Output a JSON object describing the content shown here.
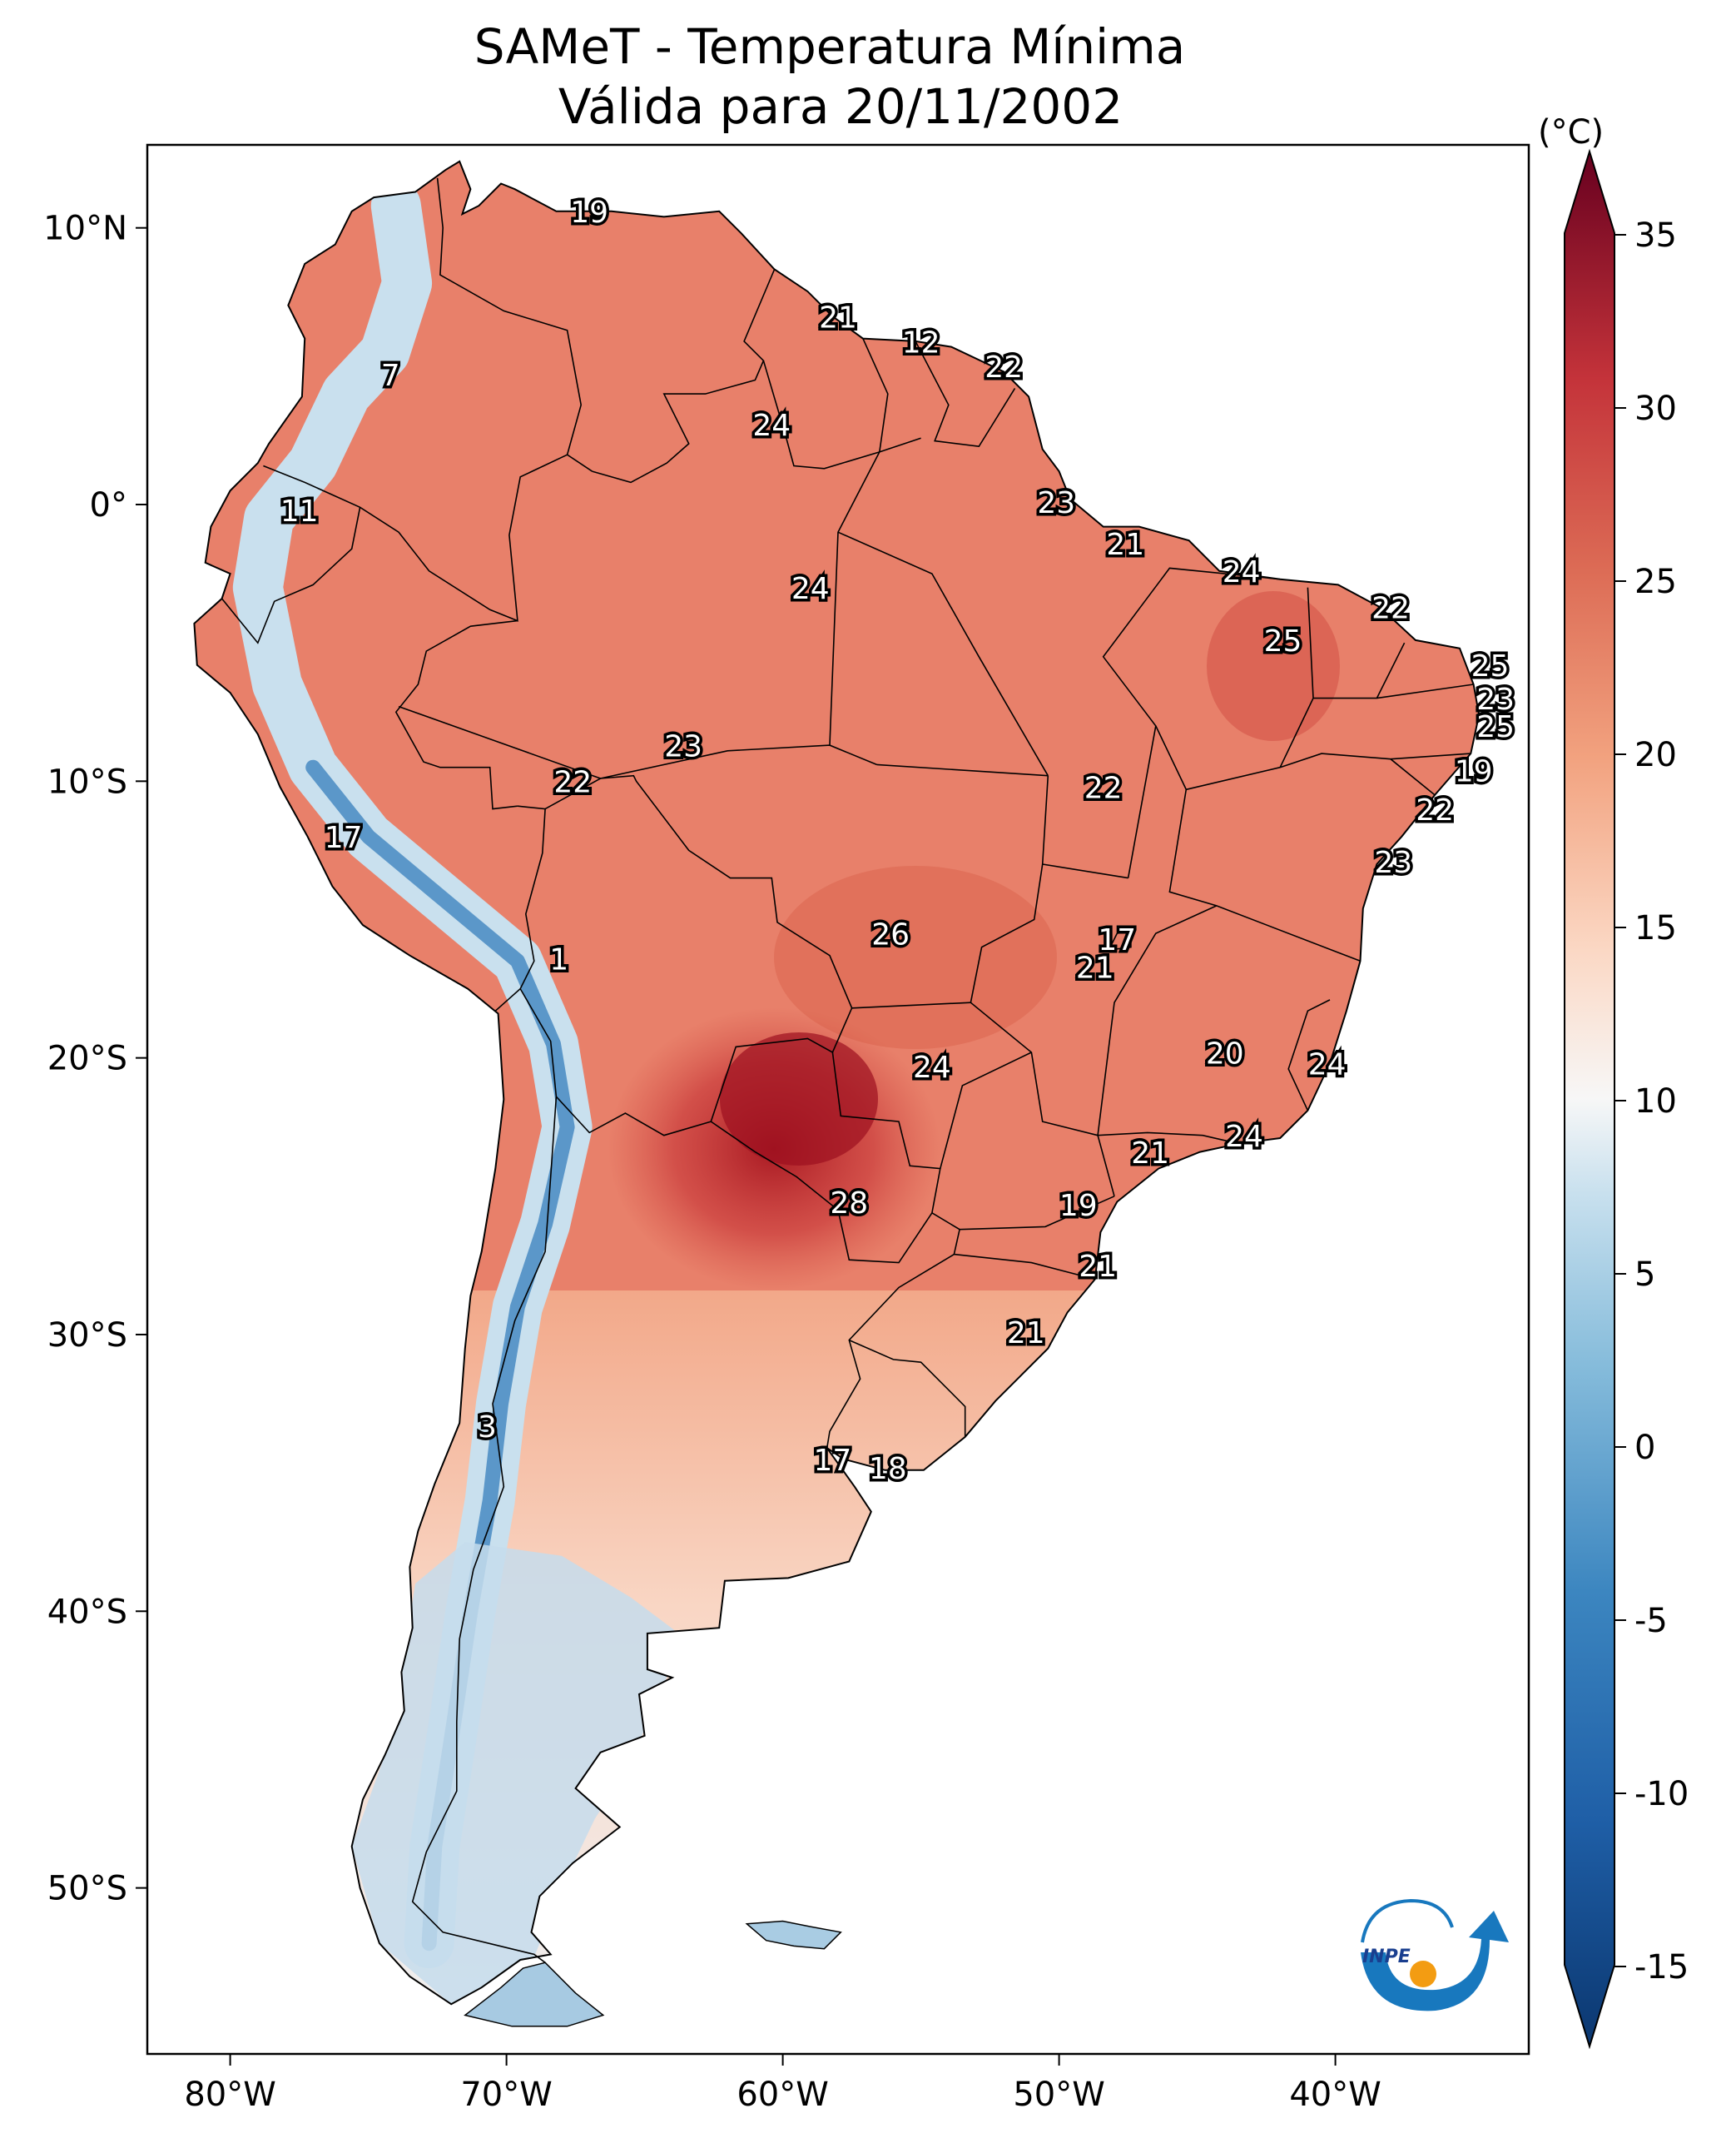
{
  "title": {
    "line1": "SAMeT - Temperatura Mínima",
    "line2": "Válida para 20/11/2002"
  },
  "map": {
    "lon_ticks": [
      "80°W",
      "70°W",
      "60°W",
      "50°W",
      "40°W"
    ],
    "lat_ticks": [
      "10°N",
      "0°",
      "10°S",
      "20°S",
      "30°S",
      "40°S",
      "50°S"
    ],
    "extent": {
      "lon_min": -83,
      "lon_max": -33,
      "lat_min": -56,
      "lat_max": 13
    }
  },
  "colorbar": {
    "unit": "(°C)",
    "ticks": [
      "35",
      "30",
      "25",
      "20",
      "15",
      "10",
      "5",
      "0",
      "-5",
      "-10",
      "-15"
    ],
    "range": [
      -15,
      35
    ],
    "colors": {
      "min": "#0b3770",
      "cold": "#3c86c0",
      "cool": "#b9d9ea",
      "neutral": "#f7f7f7",
      "mild": "#f9c4a8",
      "warm": "#e5806b",
      "hot": "#c4333a",
      "max": "#67001f"
    }
  },
  "stations": [
    {
      "value": "19",
      "lon": -67.0,
      "lat": 10.5
    },
    {
      "value": "21",
      "lon": -58.0,
      "lat": 6.7
    },
    {
      "value": "12",
      "lon": -55.0,
      "lat": 5.8
    },
    {
      "value": "22",
      "lon": -52.0,
      "lat": 4.9
    },
    {
      "value": "7",
      "lon": -74.2,
      "lat": 4.6
    },
    {
      "value": "24",
      "lon": -60.4,
      "lat": 2.8
    },
    {
      "value": "23",
      "lon": -50.1,
      "lat": 0.0
    },
    {
      "value": "11",
      "lon": -77.5,
      "lat": -0.3
    },
    {
      "value": "21",
      "lon": -47.6,
      "lat": -1.5
    },
    {
      "value": "24",
      "lon": -43.4,
      "lat": -2.5
    },
    {
      "value": "24",
      "lon": -59.0,
      "lat": -3.1
    },
    {
      "value": "22",
      "lon": -38.0,
      "lat": -3.8
    },
    {
      "value": "25",
      "lon": -41.9,
      "lat": -5.0
    },
    {
      "value": "25",
      "lon": -34.4,
      "lat": -5.9
    },
    {
      "value": "23",
      "lon": -34.2,
      "lat": -7.1
    },
    {
      "value": "25",
      "lon": -34.2,
      "lat": -8.1
    },
    {
      "value": "23",
      "lon": -63.6,
      "lat": -8.8
    },
    {
      "value": "19",
      "lon": -35.0,
      "lat": -9.7
    },
    {
      "value": "22",
      "lon": -67.6,
      "lat": -10.1
    },
    {
      "value": "22",
      "lon": -48.4,
      "lat": -10.3
    },
    {
      "value": "22",
      "lon": -36.4,
      "lat": -11.1
    },
    {
      "value": "17",
      "lon": -75.9,
      "lat": -12.1
    },
    {
      "value": "23",
      "lon": -37.9,
      "lat": -13.0
    },
    {
      "value": "26",
      "lon": -56.1,
      "lat": -15.6
    },
    {
      "value": "17",
      "lon": -47.9,
      "lat": -15.8
    },
    {
      "value": "21",
      "lon": -48.7,
      "lat": -16.8
    },
    {
      "value": "1",
      "lon": -68.1,
      "lat": -16.5
    },
    {
      "value": "20",
      "lon": -44.0,
      "lat": -19.9
    },
    {
      "value": "24",
      "lon": -40.3,
      "lat": -20.3
    },
    {
      "value": "24",
      "lon": -54.6,
      "lat": -20.4
    },
    {
      "value": "24",
      "lon": -43.3,
      "lat": -22.9
    },
    {
      "value": "21",
      "lon": -46.7,
      "lat": -23.5
    },
    {
      "value": "28",
      "lon": -57.6,
      "lat": -25.3
    },
    {
      "value": "19",
      "lon": -49.3,
      "lat": -25.4
    },
    {
      "value": "21",
      "lon": -48.6,
      "lat": -27.6
    },
    {
      "value": "21",
      "lon": -51.2,
      "lat": -30.0
    },
    {
      "value": "3",
      "lon": -70.7,
      "lat": -33.4
    },
    {
      "value": "17",
      "lon": -58.2,
      "lat": -34.6
    },
    {
      "value": "18",
      "lon": -56.2,
      "lat": -34.9
    }
  ],
  "logo": {
    "text": "INPE"
  }
}
